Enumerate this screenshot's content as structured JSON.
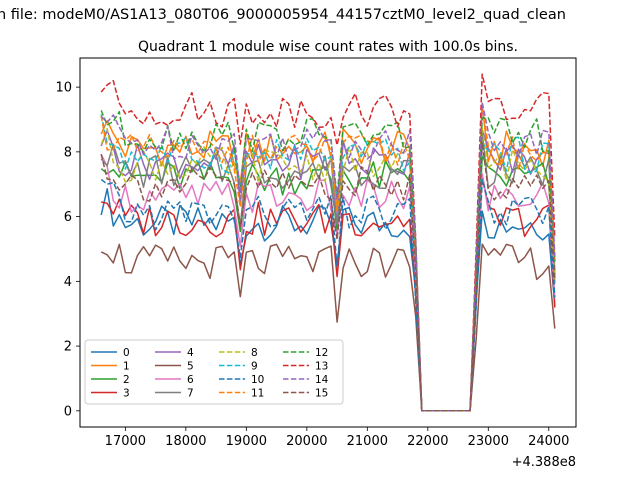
{
  "figure": {
    "suptitle": "n file: modeM0/AS1A13_080T06_9000005954_44157cztM0_level2_quad_clean",
    "offset_label": "+4.388e8"
  },
  "chart_data": {
    "type": "line",
    "title": "Quadrant 1 module wise count rates with 100.0s bins.",
    "xlabel": "",
    "ylabel": "",
    "xlim": [
      16250,
      24450
    ],
    "ylim": [
      -0.5,
      10.9
    ],
    "x_offset": 438800000,
    "xticks": [
      17000,
      18000,
      19000,
      20000,
      21000,
      22000,
      23000,
      24000
    ],
    "yticks": [
      0,
      2,
      4,
      6,
      8,
      10
    ],
    "grid": false,
    "legend": {
      "placement": "lower-left",
      "columns": 4
    },
    "x": [
      16600,
      16700,
      16800,
      16900,
      17000,
      17100,
      17200,
      17300,
      17400,
      17500,
      17600,
      17700,
      17800,
      17900,
      18000,
      18100,
      18200,
      18300,
      18400,
      18500,
      18600,
      18700,
      18800,
      18900,
      19000,
      19100,
      19200,
      19300,
      19400,
      19500,
      19600,
      19700,
      19800,
      19900,
      20000,
      20100,
      20200,
      20300,
      20400,
      20500,
      20600,
      20700,
      20800,
      20900,
      21000,
      21100,
      21200,
      21300,
      21400,
      21500,
      21600,
      21700,
      21800,
      21900,
      22000,
      22100,
      22200,
      22300,
      22400,
      22500,
      22600,
      22700,
      22800,
      22900,
      23000,
      23100,
      23200,
      23300,
      23400,
      23500,
      23600,
      23700,
      23800,
      23900,
      24000,
      24100
    ],
    "gap": [
      21900,
      22700
    ],
    "series": [
      {
        "name": "0",
        "base": 5.8,
        "style": "solid",
        "color": "#1f77b4"
      },
      {
        "name": "1",
        "base": 8.1,
        "style": "solid",
        "color": "#ff7f0e"
      },
      {
        "name": "2",
        "base": 7.2,
        "style": "solid",
        "color": "#2ca02c"
      },
      {
        "name": "3",
        "base": 5.9,
        "style": "solid",
        "color": "#d62728"
      },
      {
        "name": "4",
        "base": 7.7,
        "style": "solid",
        "color": "#9467bd"
      },
      {
        "name": "5",
        "base": 4.6,
        "style": "solid",
        "color": "#8c564b"
      },
      {
        "name": "6",
        "base": 6.6,
        "style": "solid",
        "color": "#e377c2"
      },
      {
        "name": "7",
        "base": 7.4,
        "style": "solid",
        "color": "#7f7f7f"
      },
      {
        "name": "8",
        "base": 7.6,
        "style": "dashed",
        "color": "#bcbd22"
      },
      {
        "name": "9",
        "base": 7.9,
        "style": "dashed",
        "color": "#17becf"
      },
      {
        "name": "10",
        "base": 6.1,
        "style": "dashed",
        "color": "#1f77b4"
      },
      {
        "name": "11",
        "base": 8.0,
        "style": "dashed",
        "color": "#ff7f0e"
      },
      {
        "name": "12",
        "base": 8.5,
        "style": "dashed",
        "color": "#2ca02c"
      },
      {
        "name": "13",
        "base": 9.3,
        "style": "dashed",
        "color": "#d62728"
      },
      {
        "name": "14",
        "base": 8.3,
        "style": "dashed",
        "color": "#9467bd"
      },
      {
        "name": "15",
        "base": 7.0,
        "style": "dashed",
        "color": "#8c564b"
      }
    ]
  }
}
